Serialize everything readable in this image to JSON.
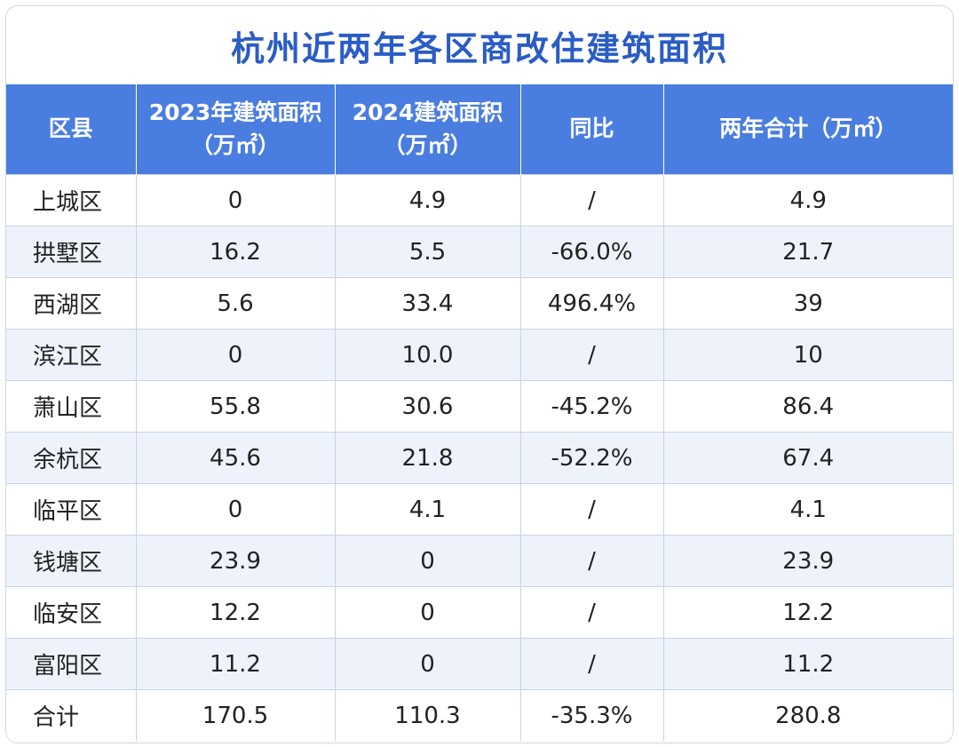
{
  "title": "杭州近两年各区商改住建筑面积",
  "header": {
    "district": "区县",
    "area_2023_line1": "2023年建筑面积",
    "area_2023_line2": "（万㎡）",
    "area_2024_line1": "2024建筑面积",
    "area_2024_line2": "（万㎡）",
    "yoy": "同比",
    "total": "两年合计（万㎡）"
  },
  "rows": [
    {
      "district": "上城区",
      "area_2023": "0",
      "area_2024": "4.9",
      "yoy": "/",
      "total": "4.9"
    },
    {
      "district": "拱墅区",
      "area_2023": "16.2",
      "area_2024": "5.5",
      "yoy": "-66.0%",
      "total": "21.7"
    },
    {
      "district": "西湖区",
      "area_2023": "5.6",
      "area_2024": "33.4",
      "yoy": "496.4%",
      "total": "39"
    },
    {
      "district": "滨江区",
      "area_2023": "0",
      "area_2024": "10.0",
      "yoy": "/",
      "total": "10"
    },
    {
      "district": "萧山区",
      "area_2023": "55.8",
      "area_2024": "30.6",
      "yoy": "-45.2%",
      "total": "86.4"
    },
    {
      "district": "余杭区",
      "area_2023": "45.6",
      "area_2024": "21.8",
      "yoy": "-52.2%",
      "total": "67.4"
    },
    {
      "district": "临平区",
      "area_2023": "0",
      "area_2024": "4.1",
      "yoy": "/",
      "total": "4.1"
    },
    {
      "district": "钱塘区",
      "area_2023": "23.9",
      "area_2024": "0",
      "yoy": "/",
      "total": "23.9"
    },
    {
      "district": "临安区",
      "area_2023": "12.2",
      "area_2024": "0",
      "yoy": "/",
      "total": "12.2"
    },
    {
      "district": "富阳区",
      "area_2023": "11.2",
      "area_2024": "0",
      "yoy": "/",
      "total": "11.2"
    },
    {
      "district": "合计",
      "area_2023": "170.5",
      "area_2024": "110.3",
      "yoy": "-35.3%",
      "total": "280.8"
    }
  ],
  "colors": {
    "title": "#2a5cc4",
    "header_bg": "#4a7de0",
    "row_alt_bg": "#eef3fb",
    "grid": "#c9d3e6"
  }
}
